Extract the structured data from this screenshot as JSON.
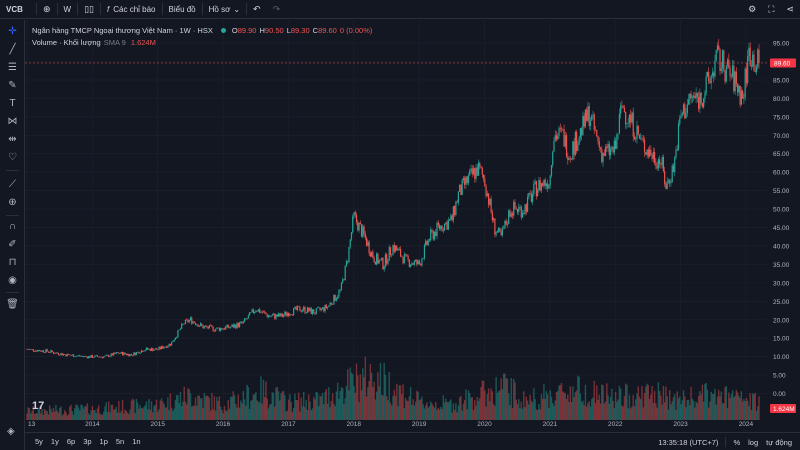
{
  "topbar": {
    "symbol": "VCB",
    "interval": "W",
    "indicators_label": "Các chỉ báo",
    "chart_type_label": "Biểu đồ",
    "profile_label": "Hồ sơ"
  },
  "legend": {
    "title": "Ngân hàng TMCP Ngoại thương Việt Nam · 1W · HSX",
    "o_label": "O",
    "o_value": "89.90",
    "h_label": "H",
    "h_value": "90.50",
    "l_label": "L",
    "l_value": "89.30",
    "c_label": "C",
    "c_value": "89.60",
    "change": "0 (0.00%)",
    "volume_label": "Volume · Khối lượng",
    "sma_label": "SMA 9",
    "volume_value": "1.624M"
  },
  "bottombar": {
    "ranges": [
      "5y",
      "1y",
      "6p",
      "3p",
      "1p",
      "5n",
      "1n"
    ],
    "time": "13:35:18 (UTC+7)",
    "percent": "%",
    "log": "log",
    "auto": "tự động"
  },
  "colors": {
    "up": "#26a69a",
    "down": "#ef5350",
    "background": "#131722",
    "grid": "#1e222d",
    "text": "#b2b5be",
    "last_price_bg": "#f23645"
  },
  "icons": {
    "left_toolbar": [
      "crosshair-icon",
      "trend-line-icon",
      "fib-retracement-icon",
      "brush-icon",
      "text-icon",
      "pattern-icon",
      "forecast-icon",
      "heart-icon",
      "ruler-icon",
      "zoom-in-icon",
      "magnet-icon",
      "lock-drawings-icon",
      "lock-icon",
      "eye-icon",
      "trash-icon"
    ],
    "top_right": [
      "gear-icon",
      "fullscreen-icon",
      "share-icon"
    ]
  },
  "chart_data": {
    "type": "candlestick",
    "title": "Ngân hàng TMCP Ngoại thương Việt Nam · 1W · HSX",
    "interval": "1W",
    "last_price": "89.60",
    "last_volume": "1.624M",
    "y_axis": {
      "ticks": [
        "95.00",
        "90.00",
        "85.00",
        "80.00",
        "75.00",
        "70.00",
        "65.00",
        "60.00",
        "55.00",
        "50.00",
        "45.00",
        "40.00",
        "35.00",
        "30.00",
        "25.00",
        "20.00",
        "15.00",
        "10.00",
        "5.00",
        "0.00"
      ],
      "range": [
        -5,
        98
      ]
    },
    "x_axis": {
      "ticks": [
        "13",
        "2014",
        "2015",
        "2016",
        "2017",
        "2018",
        "2019",
        "2020",
        "2021",
        "2022",
        "2023",
        "2024"
      ],
      "range": [
        2013.0,
        2024.2
      ]
    },
    "price_path": [
      [
        2013.0,
        12
      ],
      [
        2013.3,
        11.5
      ],
      [
        2013.6,
        10.5
      ],
      [
        2013.9,
        10
      ],
      [
        2014.2,
        10
      ],
      [
        2014.4,
        11
      ],
      [
        2014.6,
        10.5
      ],
      [
        2014.8,
        12
      ],
      [
        2015.0,
        12
      ],
      [
        2015.2,
        13.5
      ],
      [
        2015.4,
        19
      ],
      [
        2015.5,
        20
      ],
      [
        2015.7,
        18
      ],
      [
        2015.9,
        17.5
      ],
      [
        2016.1,
        18
      ],
      [
        2016.3,
        19
      ],
      [
        2016.5,
        23
      ],
      [
        2016.7,
        21
      ],
      [
        2016.9,
        21
      ],
      [
        2017.0,
        22
      ],
      [
        2017.2,
        23
      ],
      [
        2017.4,
        22
      ],
      [
        2017.6,
        23.5
      ],
      [
        2017.8,
        28
      ],
      [
        2017.9,
        36
      ],
      [
        2018.0,
        48
      ],
      [
        2018.15,
        43
      ],
      [
        2018.3,
        37
      ],
      [
        2018.45,
        35
      ],
      [
        2018.6,
        40
      ],
      [
        2018.8,
        36
      ],
      [
        2019.0,
        35
      ],
      [
        2019.15,
        42
      ],
      [
        2019.3,
        45
      ],
      [
        2019.5,
        47
      ],
      [
        2019.6,
        54
      ],
      [
        2019.75,
        58
      ],
      [
        2019.9,
        61
      ],
      [
        2020.0,
        58
      ],
      [
        2020.15,
        45
      ],
      [
        2020.25,
        42
      ],
      [
        2020.4,
        50
      ],
      [
        2020.6,
        50
      ],
      [
        2020.8,
        56
      ],
      [
        2021.0,
        58
      ],
      [
        2021.05,
        70
      ],
      [
        2021.2,
        70
      ],
      [
        2021.3,
        65
      ],
      [
        2021.5,
        72
      ],
      [
        2021.6,
        76
      ],
      [
        2021.7,
        70
      ],
      [
        2021.8,
        65
      ],
      [
        2022.0,
        66
      ],
      [
        2022.1,
        78
      ],
      [
        2022.3,
        72
      ],
      [
        2022.4,
        68
      ],
      [
        2022.55,
        65
      ],
      [
        2022.7,
        63
      ],
      [
        2022.78,
        56
      ],
      [
        2022.9,
        62
      ],
      [
        2023.0,
        75
      ],
      [
        2023.15,
        80
      ],
      [
        2023.3,
        80
      ],
      [
        2023.45,
        85
      ],
      [
        2023.55,
        91
      ],
      [
        2023.7,
        88
      ],
      [
        2023.85,
        84
      ],
      [
        2023.95,
        80
      ],
      [
        2024.05,
        93
      ],
      [
        2024.15,
        89.6
      ]
    ],
    "volume_path": [
      [
        2013.0,
        0.2
      ],
      [
        2014.0,
        0.25
      ],
      [
        2015.0,
        0.35
      ],
      [
        2015.5,
        0.55
      ],
      [
        2016.0,
        0.35
      ],
      [
        2016.6,
        0.65
      ],
      [
        2017.0,
        0.4
      ],
      [
        2017.5,
        0.45
      ],
      [
        2018.0,
        0.85
      ],
      [
        2018.3,
        1.0
      ],
      [
        2019.0,
        0.4
      ],
      [
        2019.5,
        0.35
      ],
      [
        2020.0,
        0.6
      ],
      [
        2020.3,
        0.75
      ],
      [
        2020.6,
        0.45
      ],
      [
        2021.0,
        0.55
      ],
      [
        2021.4,
        0.7
      ],
      [
        2022.0,
        0.5
      ],
      [
        2022.5,
        0.6
      ],
      [
        2023.0,
        0.45
      ],
      [
        2023.4,
        0.55
      ],
      [
        2023.8,
        0.5
      ],
      [
        2024.15,
        0.4
      ]
    ],
    "volume_scale": "relative"
  }
}
